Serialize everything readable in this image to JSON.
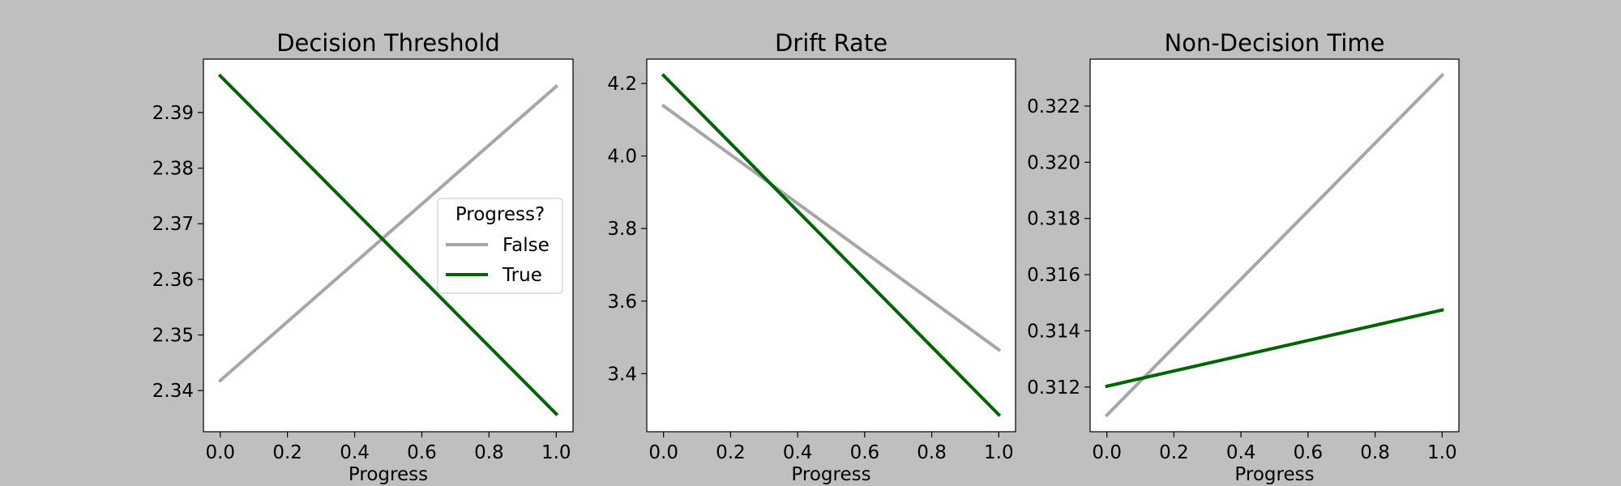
{
  "chart_data": [
    {
      "type": "line",
      "title": "Decision Threshold",
      "xlabel": "Progress",
      "ylabel": "",
      "x": [
        0.0,
        1.0
      ],
      "xlim": [
        -0.05,
        1.05
      ],
      "ylim": [
        2.3326,
        2.3996
      ],
      "xticks": [
        0.0,
        0.2,
        0.4,
        0.6,
        0.8,
        1.0
      ],
      "xtick_labels": [
        "0.0",
        "0.2",
        "0.4",
        "0.6",
        "0.8",
        "1.0"
      ],
      "yticks": [
        2.34,
        2.35,
        2.36,
        2.37,
        2.38,
        2.39
      ],
      "ytick_labels": [
        "2.34",
        "2.35",
        "2.36",
        "2.37",
        "2.38",
        "2.39"
      ],
      "series": [
        {
          "name": "False",
          "color": "#a6a6a6",
          "values": [
            2.3418,
            2.3947
          ]
        },
        {
          "name": "True",
          "color": "#006400",
          "values": [
            2.3966,
            2.3358
          ]
        }
      ],
      "legend": {
        "title": "Progress?",
        "position": "center-right",
        "entries": [
          "False",
          "True"
        ]
      }
    },
    {
      "type": "line",
      "title": "Drift Rate",
      "xlabel": "Progress",
      "ylabel": "",
      "x": [
        0.0,
        1.0
      ],
      "xlim": [
        -0.05,
        1.05
      ],
      "ylim": [
        3.24,
        4.267
      ],
      "xticks": [
        0.0,
        0.2,
        0.4,
        0.6,
        0.8,
        1.0
      ],
      "xtick_labels": [
        "0.0",
        "0.2",
        "0.4",
        "0.6",
        "0.8",
        "1.0"
      ],
      "yticks": [
        3.4,
        3.6,
        3.8,
        4.0,
        4.2
      ],
      "ytick_labels": [
        "3.4",
        "3.6",
        "3.8",
        "4.0",
        "4.2"
      ],
      "series": [
        {
          "name": "False",
          "color": "#a6a6a6",
          "values": [
            4.138,
            3.466
          ]
        },
        {
          "name": "True",
          "color": "#006400",
          "values": [
            4.222,
            3.287
          ]
        }
      ]
    },
    {
      "type": "line",
      "title": "Non-Decision Time",
      "xlabel": "Progress",
      "ylabel": "",
      "x": [
        0.0,
        1.0
      ],
      "xlim": [
        -0.05,
        1.05
      ],
      "ylim": [
        0.31041,
        0.32367
      ],
      "xticks": [
        0.0,
        0.2,
        0.4,
        0.6,
        0.8,
        1.0
      ],
      "xtick_labels": [
        "0.0",
        "0.2",
        "0.4",
        "0.6",
        "0.8",
        "1.0"
      ],
      "yticks": [
        0.312,
        0.314,
        0.316,
        0.318,
        0.32,
        0.322
      ],
      "ytick_labels": [
        "0.312",
        "0.314",
        "0.316",
        "0.318",
        "0.320",
        "0.322"
      ],
      "series": [
        {
          "name": "False",
          "color": "#a6a6a6",
          "values": [
            0.311,
            0.3231
          ]
        },
        {
          "name": "True",
          "color": "#006400",
          "values": [
            0.31203,
            0.31474
          ]
        }
      ]
    }
  ]
}
